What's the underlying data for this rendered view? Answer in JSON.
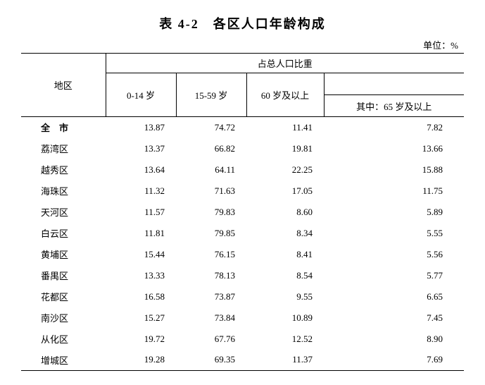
{
  "title": "表 4-2　各区人口年龄构成",
  "unit": "单位：%",
  "header": {
    "region": "地区",
    "group": "占总人口比重",
    "col1": "0-14 岁",
    "col2": "15-59 岁",
    "col3": "60 岁及以上",
    "col4": "其中：65 岁及以上"
  },
  "rows": [
    {
      "region": "全　市",
      "bold": true,
      "v1": "13.87",
      "v2": "74.72",
      "v3": "11.41",
      "v4": "7.82"
    },
    {
      "region": "荔湾区",
      "v1": "13.37",
      "v2": "66.82",
      "v3": "19.81",
      "v4": "13.66"
    },
    {
      "region": "越秀区",
      "v1": "13.64",
      "v2": "64.11",
      "v3": "22.25",
      "v4": "15.88"
    },
    {
      "region": "海珠区",
      "v1": "11.32",
      "v2": "71.63",
      "v3": "17.05",
      "v4": "11.75"
    },
    {
      "region": "天河区",
      "v1": "11.57",
      "v2": "79.83",
      "v3": "8.60",
      "v4": "5.89"
    },
    {
      "region": "白云区",
      "v1": "11.81",
      "v2": "79.85",
      "v3": "8.34",
      "v4": "5.55"
    },
    {
      "region": "黄埔区",
      "v1": "15.44",
      "v2": "76.15",
      "v3": "8.41",
      "v4": "5.56"
    },
    {
      "region": "番禺区",
      "v1": "13.33",
      "v2": "78.13",
      "v3": "8.54",
      "v4": "5.77"
    },
    {
      "region": "花都区",
      "v1": "16.58",
      "v2": "73.87",
      "v3": "9.55",
      "v4": "6.65"
    },
    {
      "region": "南沙区",
      "v1": "15.27",
      "v2": "73.84",
      "v3": "10.89",
      "v4": "7.45"
    },
    {
      "region": "从化区",
      "v1": "19.72",
      "v2": "67.76",
      "v3": "12.52",
      "v4": "8.90"
    },
    {
      "region": "增城区",
      "v1": "19.28",
      "v2": "69.35",
      "v3": "11.37",
      "v4": "7.69"
    }
  ],
  "col_widths": {
    "region": 120,
    "c1": 100,
    "c2": 100,
    "c3": 110,
    "c4": 200
  }
}
